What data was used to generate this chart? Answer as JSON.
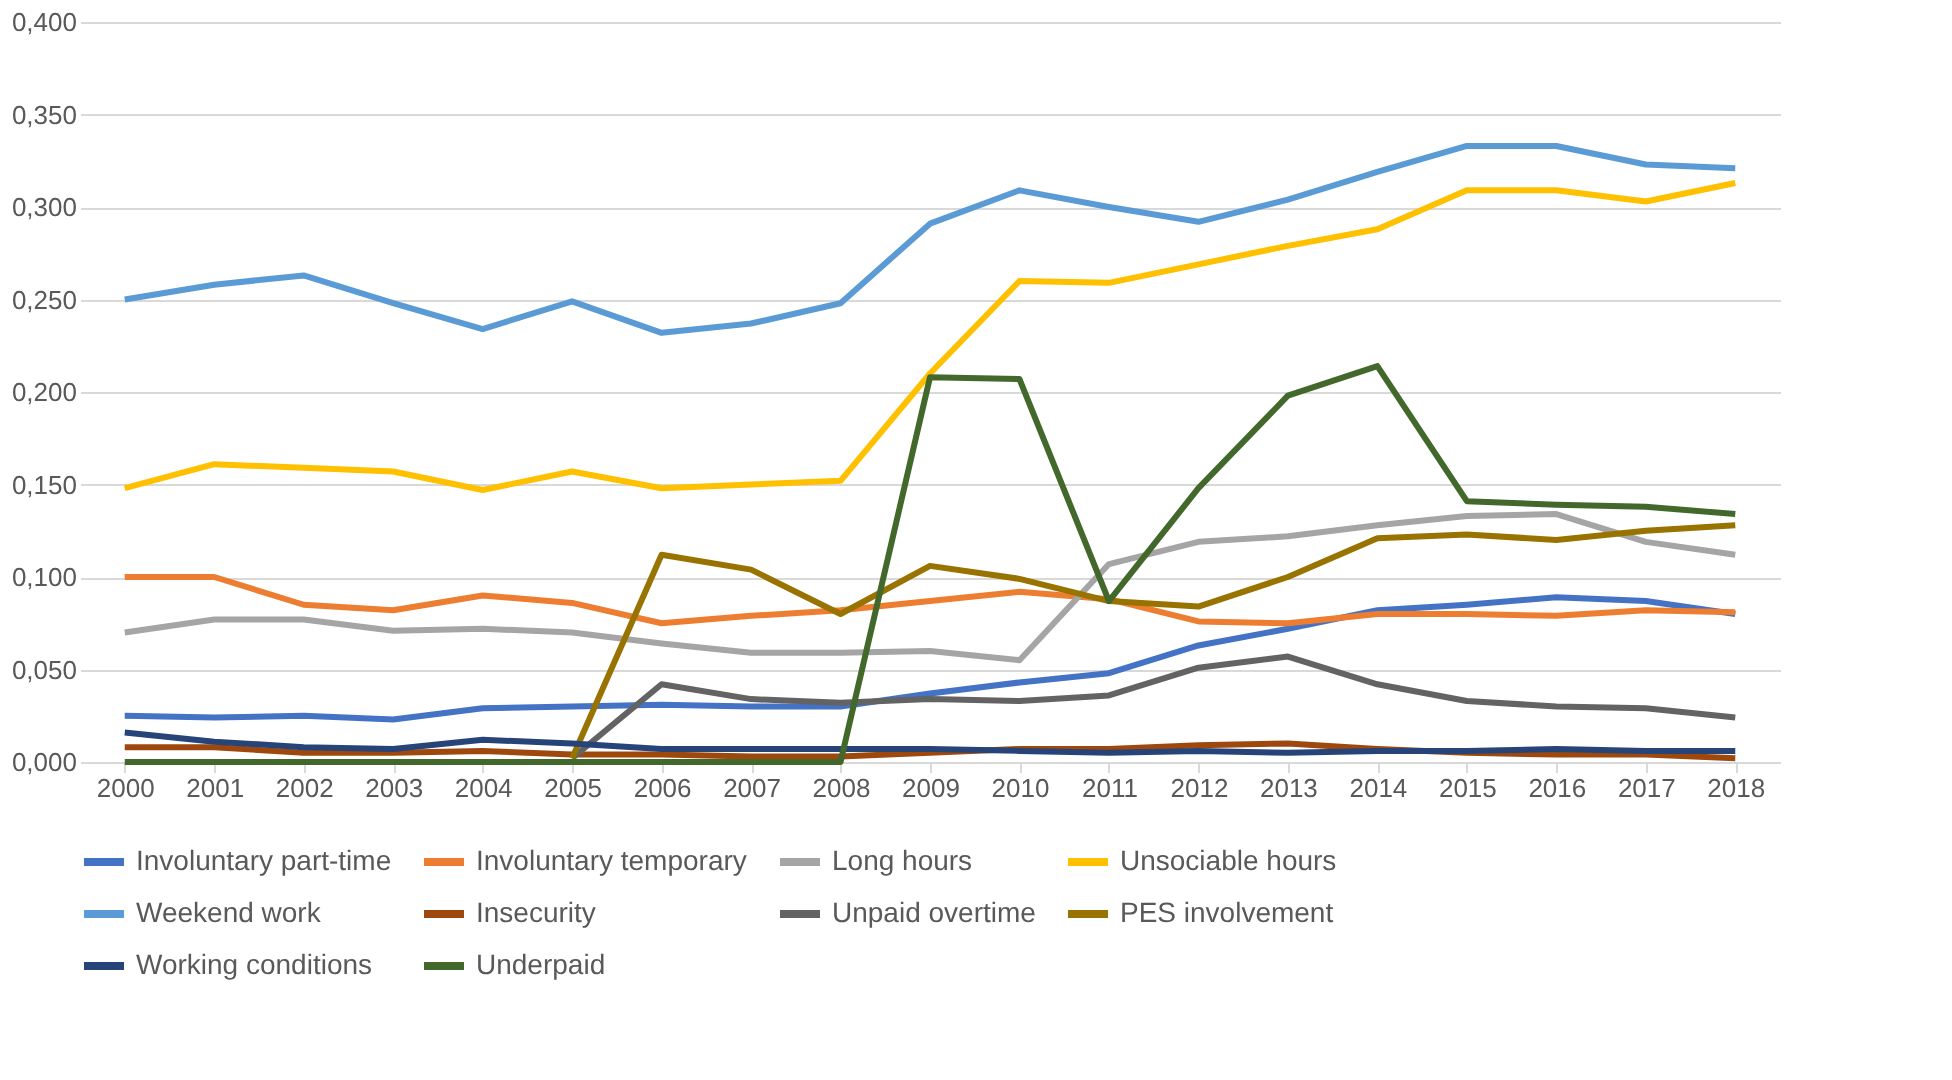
{
  "chart_data": {
    "type": "line",
    "categories": [
      "2000",
      "2001",
      "2002",
      "2003",
      "2004",
      "2005",
      "2006",
      "2007",
      "2008",
      "2009",
      "2010",
      "2011",
      "2012",
      "2013",
      "2014",
      "2015",
      "2016",
      "2017",
      "2018"
    ],
    "series": [
      {
        "name": "Involuntary part-time",
        "color": "#4472c4",
        "values": [
          0.025,
          0.024,
          0.025,
          0.023,
          0.029,
          0.03,
          0.031,
          0.03,
          0.03,
          0.037,
          0.043,
          0.048,
          0.063,
          0.072,
          0.082,
          0.085,
          0.089,
          0.087,
          0.08
        ]
      },
      {
        "name": "Involuntary temporary",
        "color": "#ed7d31",
        "values": [
          0.1,
          0.1,
          0.085,
          0.082,
          0.09,
          0.086,
          0.075,
          0.079,
          0.082,
          0.087,
          0.092,
          0.088,
          0.076,
          0.075,
          0.08,
          0.08,
          0.079,
          0.082,
          0.081
        ]
      },
      {
        "name": "Long hours",
        "color": "#a5a5a5",
        "values": [
          0.07,
          0.077,
          0.077,
          0.071,
          0.072,
          0.07,
          0.064,
          0.059,
          0.059,
          0.06,
          0.055,
          0.107,
          0.119,
          0.122,
          0.128,
          0.133,
          0.134,
          0.119,
          0.112
        ]
      },
      {
        "name": "Unsociable hours",
        "color": "#ffc000",
        "values": [
          0.148,
          0.161,
          0.159,
          0.157,
          0.147,
          0.157,
          0.148,
          0.15,
          0.152,
          0.21,
          0.26,
          0.259,
          0.269,
          0.279,
          0.288,
          0.309,
          0.309,
          0.303,
          0.313
        ]
      },
      {
        "name": "Weekend work",
        "color": "#5b9bd5",
        "values": [
          0.25,
          0.258,
          0.263,
          0.248,
          0.234,
          0.249,
          0.232,
          0.237,
          0.248,
          0.291,
          0.309,
          0.3,
          0.292,
          0.304,
          0.319,
          0.333,
          0.333,
          0.323,
          0.321
        ]
      },
      {
        "name": "Insecurity",
        "color": "#9e480e",
        "values": [
          0.008,
          0.008,
          0.005,
          0.005,
          0.006,
          0.004,
          0.004,
          0.003,
          0.003,
          0.005,
          0.007,
          0.007,
          0.009,
          0.01,
          0.007,
          0.005,
          0.004,
          0.004,
          0.002
        ]
      },
      {
        "name": "Unpaid overtime",
        "color": "#636363",
        "values": [
          null,
          null,
          null,
          null,
          null,
          0.002,
          0.042,
          0.034,
          0.032,
          0.034,
          0.033,
          0.036,
          0.051,
          0.057,
          0.042,
          0.033,
          0.03,
          0.029,
          0.024
        ]
      },
      {
        "name": "PES involvement",
        "color": "#997300",
        "values": [
          null,
          null,
          null,
          null,
          null,
          0.002,
          0.112,
          0.104,
          0.08,
          0.106,
          0.099,
          0.087,
          0.084,
          0.1,
          0.121,
          0.123,
          0.12,
          0.125,
          0.128
        ]
      },
      {
        "name": "Working conditions",
        "color": "#264478",
        "values": [
          0.016,
          0.011,
          0.008,
          0.007,
          0.012,
          0.01,
          0.007,
          0.007,
          0.007,
          0.007,
          0.006,
          0.005,
          0.006,
          0.005,
          0.006,
          0.006,
          0.007,
          0.006,
          0.006
        ]
      },
      {
        "name": "Underpaid",
        "color": "#43682b",
        "values": [
          0,
          0,
          0,
          0,
          0,
          0,
          0,
          0,
          0,
          0.208,
          0.207,
          0.087,
          0.148,
          0.198,
          0.214,
          0.141,
          0.139,
          0.138,
          0.134
        ]
      }
    ],
    "ylim": [
      0,
      0.4
    ],
    "yticks": [
      {
        "value": 0,
        "label": "0,000"
      },
      {
        "value": 0.05,
        "label": "0,050"
      },
      {
        "value": 0.1,
        "label": "0,100"
      },
      {
        "value": 0.15,
        "label": "0,150"
      },
      {
        "value": 0.2,
        "label": "0,200"
      },
      {
        "value": 0.25,
        "label": "0,250"
      },
      {
        "value": 0.3,
        "label": "0,300"
      },
      {
        "value": 0.35,
        "label": "0,350"
      },
      {
        "value": 0.4,
        "label": "0,400"
      }
    ],
    "grid": "y",
    "legend": "bottom",
    "marker": "none",
    "line_style": "solid"
  }
}
